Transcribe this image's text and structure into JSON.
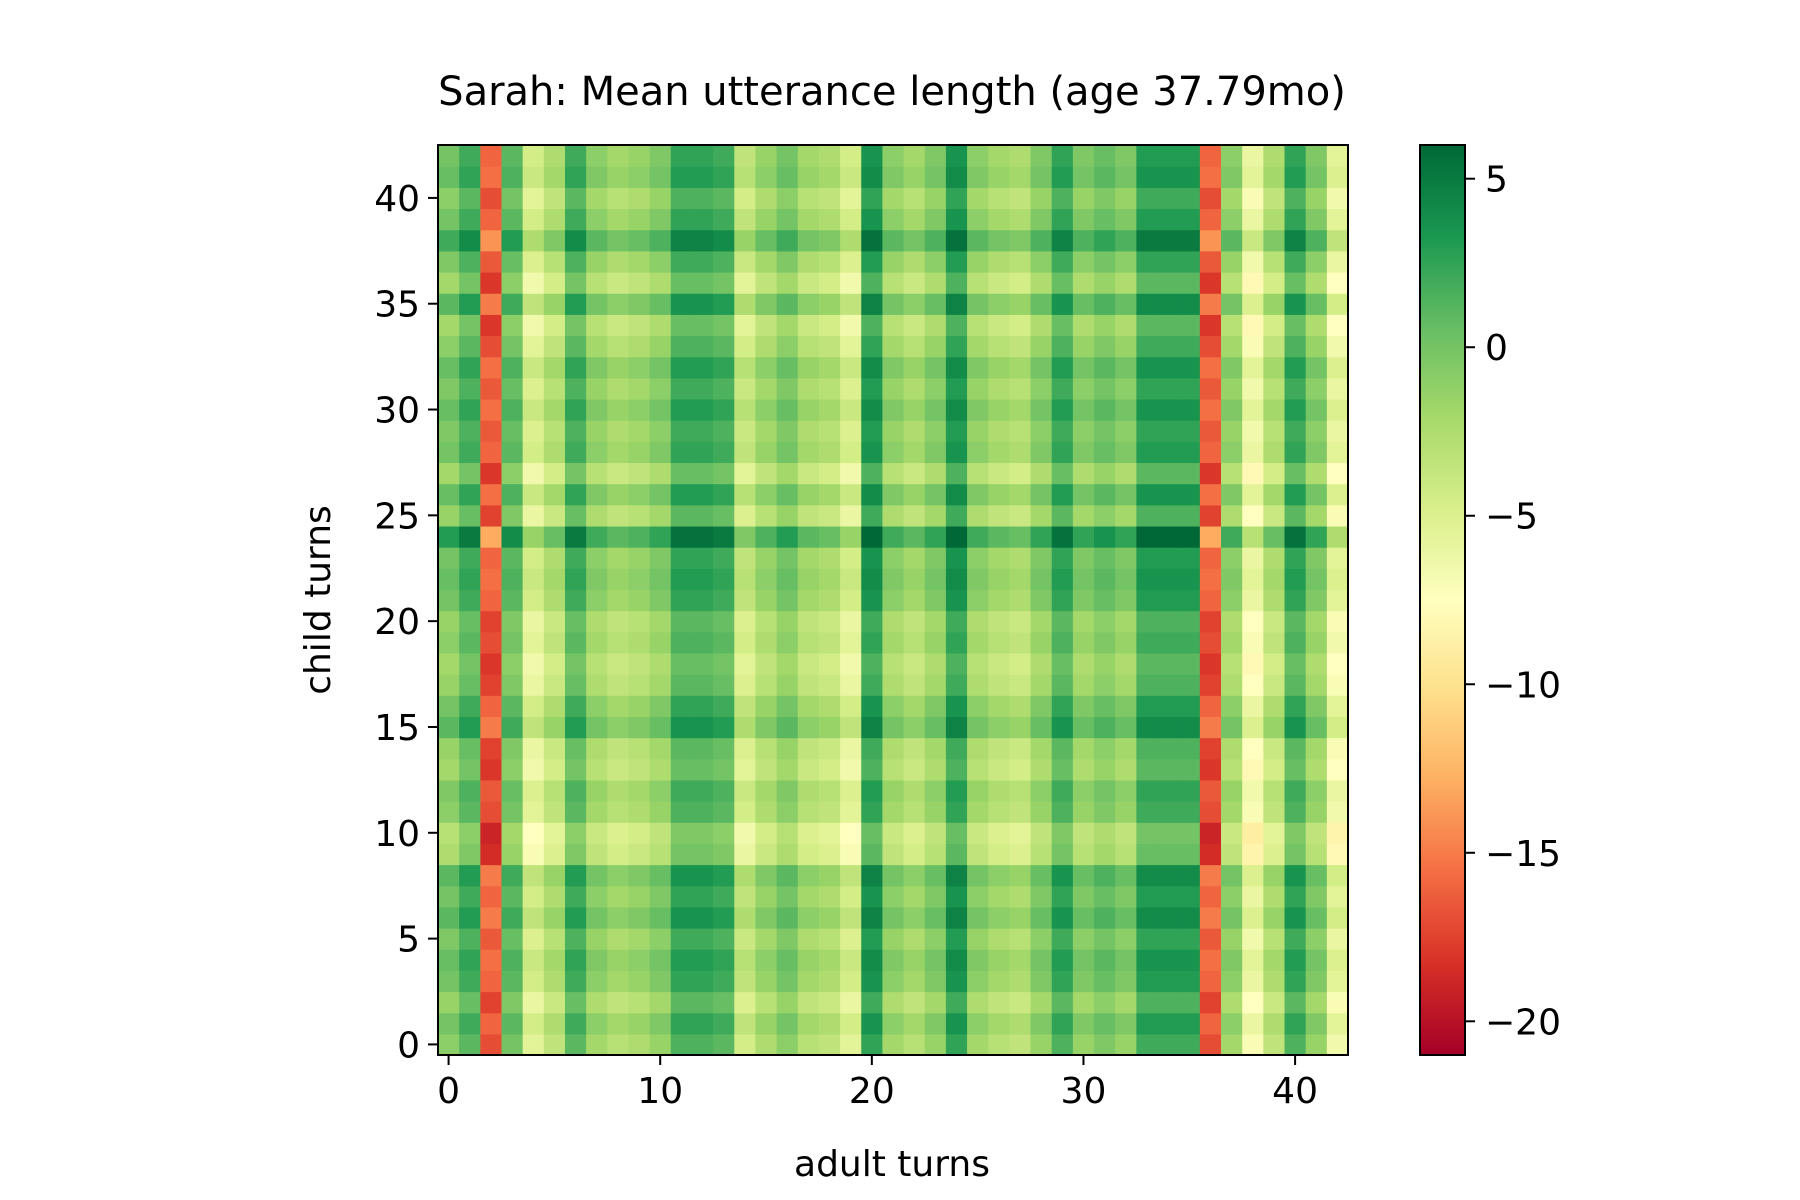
{
  "chart_data": {
    "type": "heatmap",
    "title": "Sarah: Mean utterance length (age 37.79mo)",
    "xlabel": "adult turns",
    "ylabel": "child turns",
    "xlim": [
      -0.5,
      42.5
    ],
    "ylim": [
      -0.5,
      42.5
    ],
    "xticks": [
      0,
      10,
      20,
      30,
      40
    ],
    "yticks": [
      0,
      5,
      10,
      15,
      20,
      25,
      30,
      35,
      40
    ],
    "colormap": "RdYlGn",
    "vmin": -21,
    "vmax": 6,
    "colorbar_ticks": [
      5,
      0,
      -5,
      -10,
      -15,
      -20
    ],
    "colorbar_tick_labels": [
      "5",
      "0",
      "−5",
      "−10",
      "−15",
      "−20"
    ],
    "n_rows": 43,
    "n_cols": 43,
    "model": "value[row][col] = adult_base[col] + child_offset[row] (rounded to 0.1)",
    "adult_base": [
      -1.5,
      0.5,
      -17.5,
      -0.5,
      -6,
      -4,
      0.5,
      -2.5,
      -3.5,
      -3,
      -2,
      1,
      1,
      0.5,
      -5,
      -3,
      -1.5,
      -3.5,
      -4,
      -6,
      2,
      -2.5,
      -3.5,
      -2,
      2,
      -2.5,
      -3.5,
      -4,
      -2,
      1,
      -2,
      -1,
      -2,
      1.5,
      1.5,
      1.5,
      -17.5,
      -2.5,
      -7.5,
      -4,
      1,
      -2,
      -7
    ],
    "child_offset": [
      0.5,
      1.5,
      0,
      1.5,
      2,
      1,
      2.5,
      1.5,
      2.5,
      -1,
      -1.5,
      0.5,
      1,
      -0.5,
      0,
      2.5,
      1.5,
      0,
      -0.5,
      0.5,
      0,
      1.5,
      2,
      1.5,
      4.5,
      0,
      2,
      -0.5,
      1.5,
      1,
      2,
      1,
      2,
      0.5,
      -0.5,
      2.5,
      -0.5,
      1,
      3.5,
      1.5,
      0.5,
      2,
      1.5
    ]
  },
  "colors": {
    "axis": "#000000",
    "background": "#ffffff"
  }
}
